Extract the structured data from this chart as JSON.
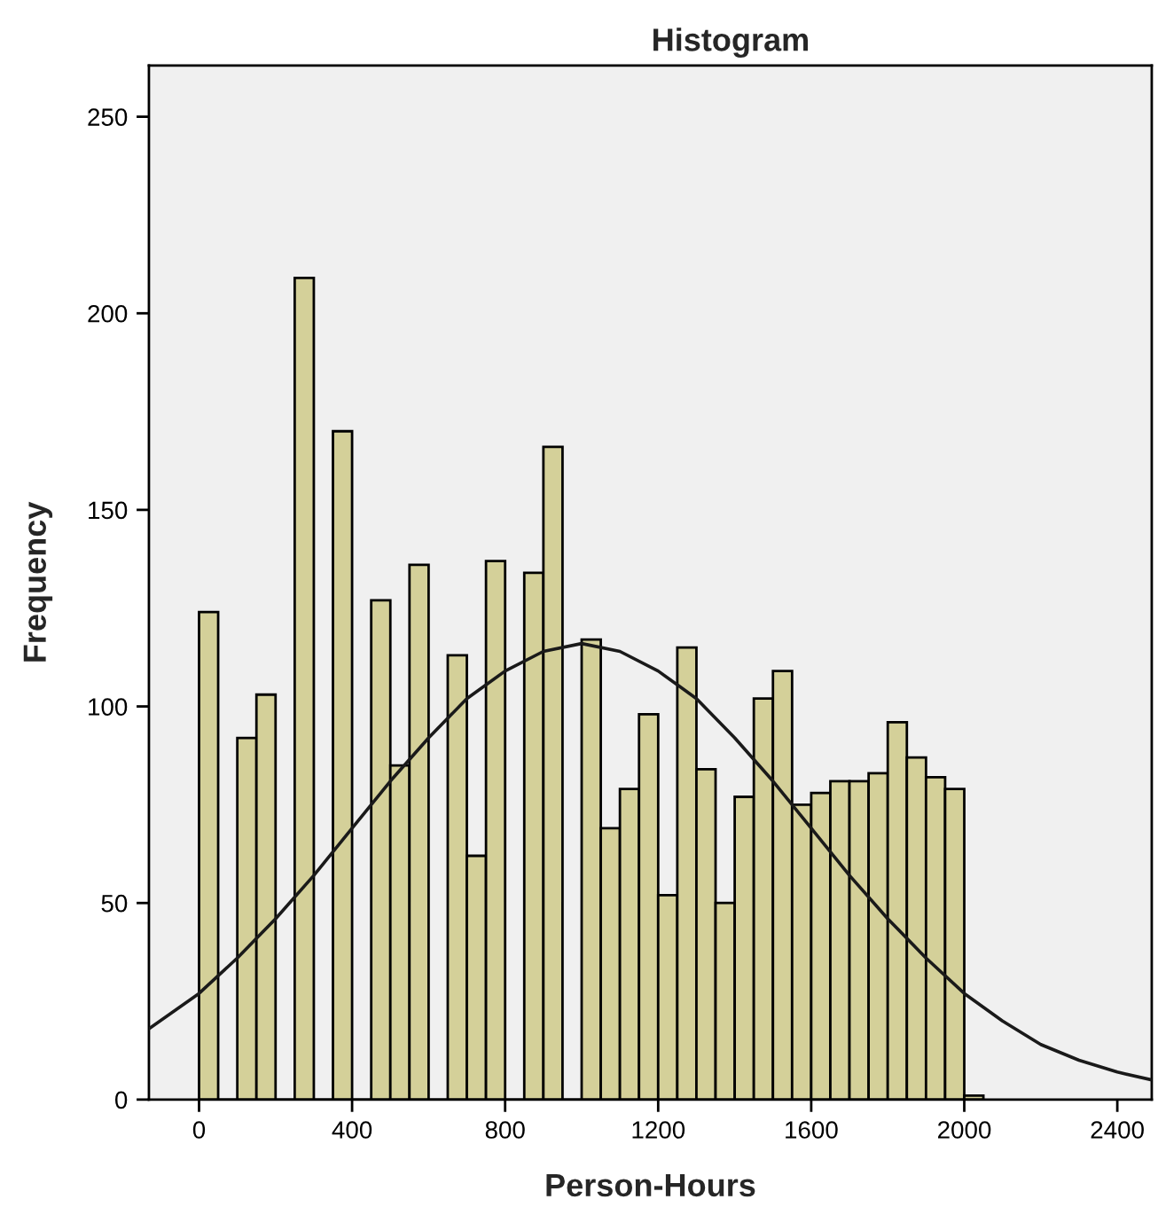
{
  "chart_data": {
    "type": "histogram",
    "title": "Histogram",
    "xlabel": "Person-Hours",
    "ylabel": "Frequency",
    "bins": [
      0,
      50,
      100,
      150,
      200,
      250,
      300,
      350,
      400,
      450,
      500,
      550,
      600,
      650,
      700,
      750,
      800,
      850,
      900,
      950,
      1000,
      1050,
      1100,
      1150,
      1200,
      1250,
      1300,
      1350,
      1400,
      1450,
      1500,
      1550,
      1600,
      1650,
      1700,
      1750,
      1800,
      1850,
      1900,
      1950,
      2000,
      2050
    ],
    "values": [
      124,
      0,
      92,
      103,
      0,
      209,
      0,
      170,
      0,
      127,
      85,
      136,
      0,
      113,
      62,
      137,
      0,
      134,
      166,
      0,
      117,
      69,
      79,
      98,
      52,
      115,
      84,
      50,
      77,
      102,
      109,
      75,
      78,
      81,
      81,
      83,
      96,
      87,
      82,
      79,
      1
    ],
    "color": "#d4d099",
    "series": [
      {
        "type": "line",
        "color": "#1a1a1a",
        "x": [
          -131,
          0,
          100,
          200,
          300,
          400,
          500,
          600,
          700,
          800,
          900,
          1000,
          1100,
          1200,
          1300,
          1400,
          1500,
          1600,
          1700,
          1800,
          1900,
          2000,
          2100,
          2200,
          2300,
          2400,
          2490
        ],
        "values": [
          18,
          27,
          36,
          46,
          57,
          69,
          81,
          92,
          102,
          109,
          114,
          116,
          114,
          109,
          102,
          92,
          81,
          69,
          57,
          46,
          36,
          27,
          20,
          14,
          10,
          7,
          5
        ]
      }
    ],
    "xlim": [
      -131,
      2490
    ],
    "xticks": [
      0,
      400,
      800,
      1200,
      1600,
      2000,
      2400
    ],
    "ylim": [
      0,
      263
    ],
    "yticks": [
      0,
      50,
      100,
      150,
      200,
      250
    ],
    "grid": false
  }
}
